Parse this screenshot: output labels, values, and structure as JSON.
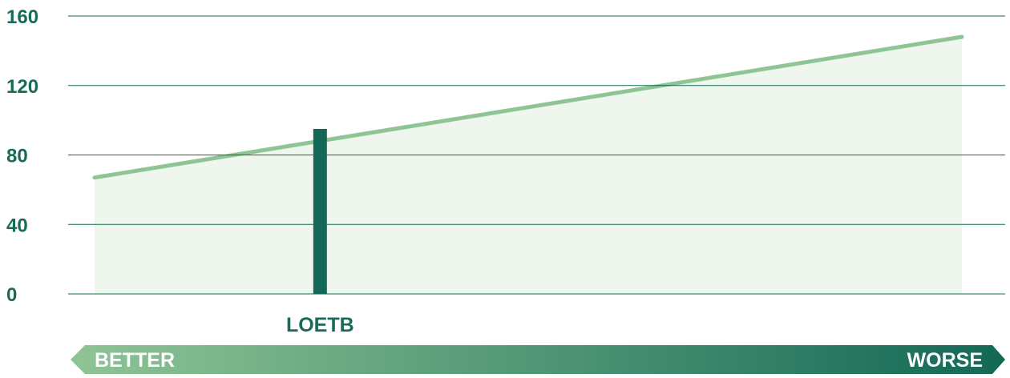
{
  "chart_data": {
    "type": "bar",
    "title": "",
    "xlabel": "",
    "ylabel": "",
    "ylim": [
      0,
      160
    ],
    "yticks": [
      0,
      40,
      80,
      120,
      160
    ],
    "grid": true,
    "reference_band": {
      "type": "area",
      "start_value": 67,
      "end_value": 148
    },
    "bars": [
      {
        "category": "LOETB",
        "value": 95,
        "position_fraction": 0.26
      }
    ],
    "scale_arrow": {
      "left_label": "BETTER",
      "right_label": "WORSE"
    }
  },
  "colors": {
    "text": "#1a6a5a",
    "bar": "#136856",
    "trend_line": "#8fc495",
    "band_fill": "#eef6ee",
    "grid": "#136856",
    "arrow_start": "#8fc495",
    "arrow_end": "#136856",
    "arrow_text": "#ffffff"
  }
}
